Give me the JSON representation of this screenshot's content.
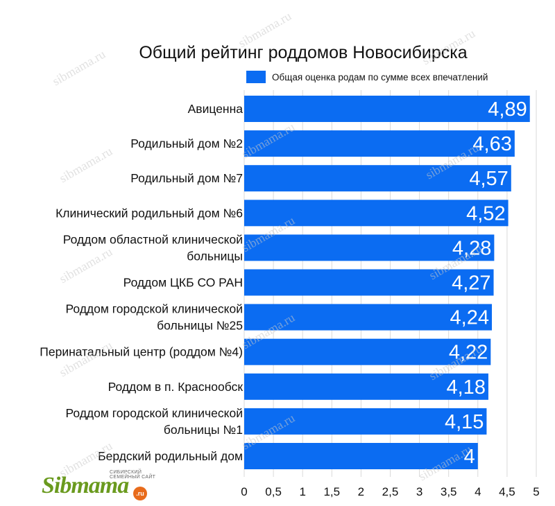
{
  "chart_data": {
    "type": "bar",
    "orientation": "horizontal",
    "title": "Общий рейтинг роддомов Новосибирска",
    "legend": {
      "position": "top",
      "label": "Общая оценка родам по сумме всех впечатлений"
    },
    "categories": [
      [
        "Авиценна"
      ],
      [
        "Родильный дом №2"
      ],
      [
        "Родильный дом №7"
      ],
      [
        "Клинический родильный дом №6"
      ],
      [
        "Роддом областной клинической",
        "больницы"
      ],
      [
        "Роддом ЦКБ СО РАН"
      ],
      [
        "Роддом городской клинической",
        "больницы №25"
      ],
      [
        "Перинатальный центр (роддом №4)"
      ],
      [
        "Роддом в п. Краснообск"
      ],
      [
        "Роддом городской клинической",
        "больницы №1"
      ],
      [
        "Бердский родильный дом"
      ]
    ],
    "series": [
      {
        "name": "Общая оценка родам по сумме всех впечатлений",
        "values": [
          4.89,
          4.63,
          4.57,
          4.52,
          4.28,
          4.27,
          4.24,
          4.22,
          4.18,
          4.15,
          4
        ],
        "labels": [
          "4,89",
          "4,63",
          "4,57",
          "4,52",
          "4,28",
          "4,27",
          "4,24",
          "4,22",
          "4,18",
          "4,15",
          "4"
        ]
      }
    ],
    "xlim": [
      0,
      5
    ],
    "xticks": [
      "0",
      "0,5",
      "1",
      "1,5",
      "2",
      "2,5",
      "3",
      "3,5",
      "4",
      "4,5",
      "5"
    ],
    "grid": "vertical",
    "bar_color": "#0b6cf2"
  },
  "watermark": "sibmama.ru",
  "logo": {
    "tagline": "СИБИРСКИЙ СЕМЕЙНЫЙ САЙТ",
    "name": "Sibmama",
    "suffix": ".ru"
  }
}
